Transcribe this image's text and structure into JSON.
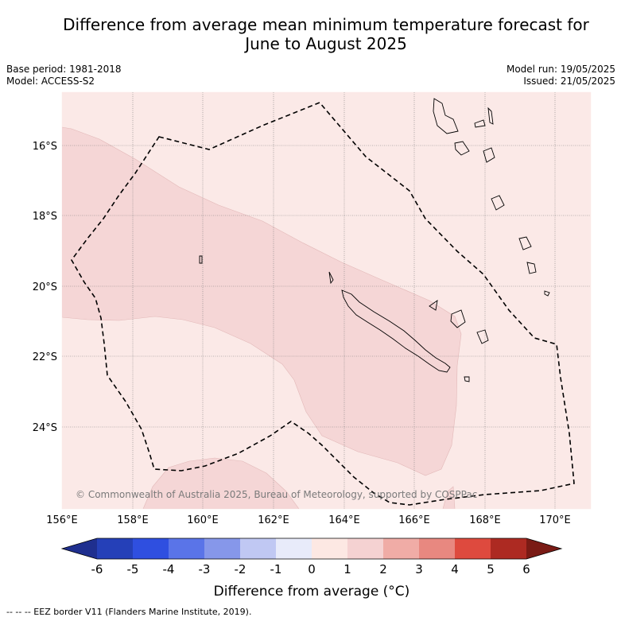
{
  "title_line1": "Difference from average mean minimum temperature forecast for",
  "title_line2": "June to August 2025",
  "meta": {
    "base_period": "Base period: 1981-2018",
    "model": "Model: ACCESS-S2",
    "model_run": "Model run: 19/05/2025",
    "issued": "Issued: 21/05/2025"
  },
  "map": {
    "lon_ticks": [
      "156°E",
      "158°E",
      "160°E",
      "162°E",
      "164°E",
      "166°E",
      "168°E",
      "170°E"
    ],
    "lat_ticks": [
      "16°S",
      "18°S",
      "20°S",
      "22°S",
      "24°S"
    ],
    "copyright": "© Commonwealth of Australia 2025, Bureau of Meteorology, supported by COSPPac",
    "background_class_color": "#fbe9e7",
    "anomaly_class_color": "#f5d6d6"
  },
  "colorbar": {
    "label": "Difference from average (°C)",
    "ticks": [
      "-6",
      "-5",
      "-4",
      "-3",
      "-2",
      "-1",
      "0",
      "1",
      "2",
      "3",
      "4",
      "5",
      "6"
    ],
    "colors": [
      "#1f2f8f",
      "#2540b8",
      "#2f4fe0",
      "#5a74e8",
      "#8697ea",
      "#c0c8f3",
      "#e8ebfa",
      "#fde8e3",
      "#f5d2d2",
      "#f0aca6",
      "#e88880",
      "#de4a3e",
      "#ad2a22",
      "#7a1b15"
    ]
  },
  "footnote": "--  --  -- EEZ border V11 (Flanders Marine Institute, 2019)."
}
